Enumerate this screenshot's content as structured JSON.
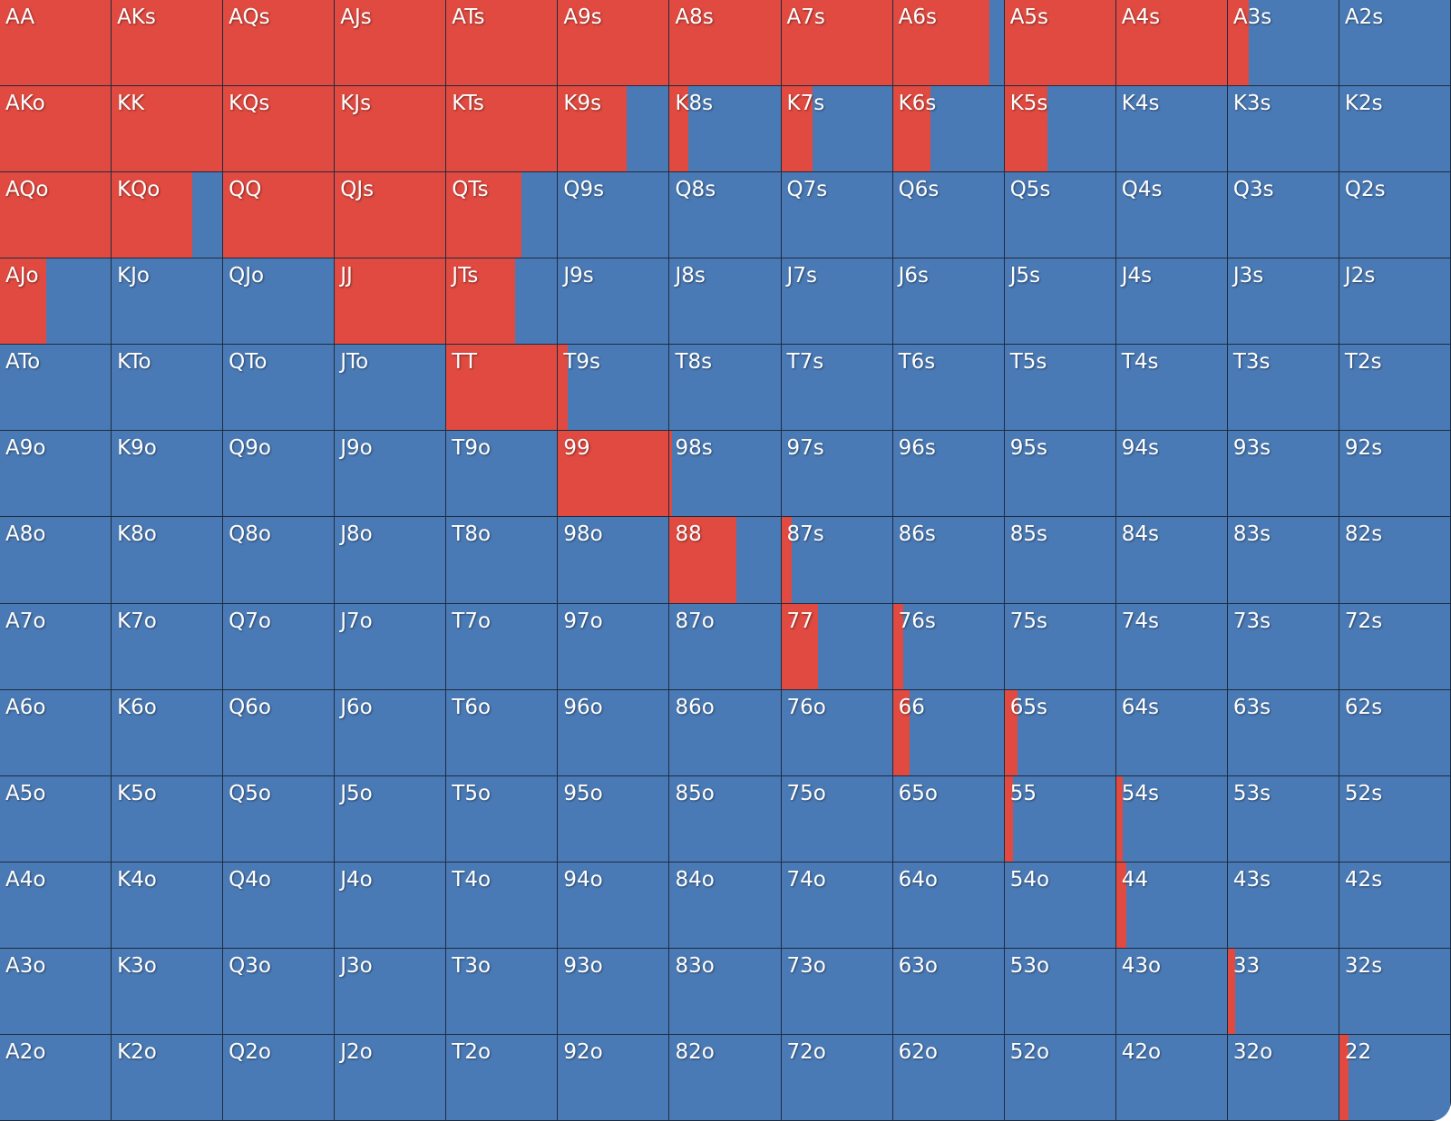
{
  "grid": {
    "colors": {
      "raise": "#e04a40",
      "fold": "#4a7ab5"
    },
    "labels": [
      [
        "AA",
        "AKs",
        "AQs",
        "AJs",
        "ATs",
        "A9s",
        "A8s",
        "A7s",
        "A6s",
        "A5s",
        "A4s",
        "A3s",
        "A2s"
      ],
      [
        "AKo",
        "KK",
        "KQs",
        "KJs",
        "KTs",
        "K9s",
        "K8s",
        "K7s",
        "K6s",
        "K5s",
        "K4s",
        "K3s",
        "K2s"
      ],
      [
        "AQo",
        "KQo",
        "QQ",
        "QJs",
        "QTs",
        "Q9s",
        "Q8s",
        "Q7s",
        "Q6s",
        "Q5s",
        "Q4s",
        "Q3s",
        "Q2s"
      ],
      [
        "AJo",
        "KJo",
        "QJo",
        "JJ",
        "JTs",
        "J9s",
        "J8s",
        "J7s",
        "J6s",
        "J5s",
        "J4s",
        "J3s",
        "J2s"
      ],
      [
        "ATo",
        "KTo",
        "QTo",
        "JTo",
        "TT",
        "T9s",
        "T8s",
        "T7s",
        "T6s",
        "T5s",
        "T4s",
        "T3s",
        "T2s"
      ],
      [
        "A9o",
        "K9o",
        "Q9o",
        "J9o",
        "T9o",
        "99",
        "98s",
        "97s",
        "96s",
        "95s",
        "94s",
        "93s",
        "92s"
      ],
      [
        "A8o",
        "K8o",
        "Q8o",
        "J8o",
        "T8o",
        "98o",
        "88",
        "87s",
        "86s",
        "85s",
        "84s",
        "83s",
        "82s"
      ],
      [
        "A7o",
        "K7o",
        "Q7o",
        "J7o",
        "T7o",
        "97o",
        "87o",
        "77",
        "76s",
        "75s",
        "74s",
        "73s",
        "72s"
      ],
      [
        "A6o",
        "K6o",
        "Q6o",
        "J6o",
        "T6o",
        "96o",
        "86o",
        "76o",
        "66",
        "65s",
        "64s",
        "63s",
        "62s"
      ],
      [
        "A5o",
        "K5o",
        "Q5o",
        "J5o",
        "T5o",
        "95o",
        "85o",
        "75o",
        "65o",
        "55",
        "54s",
        "53s",
        "52s"
      ],
      [
        "A4o",
        "K4o",
        "Q4o",
        "J4o",
        "T4o",
        "94o",
        "84o",
        "74o",
        "64o",
        "54o",
        "44",
        "43s",
        "42s"
      ],
      [
        "A3o",
        "K3o",
        "Q3o",
        "J3o",
        "T3o",
        "93o",
        "83o",
        "73o",
        "63o",
        "53o",
        "43o",
        "33",
        "32s"
      ],
      [
        "A2o",
        "K2o",
        "Q2o",
        "J2o",
        "T2o",
        "92o",
        "82o",
        "72o",
        "62o",
        "52o",
        "42o",
        "32o",
        "22"
      ]
    ],
    "raise": [
      [
        100,
        100,
        100,
        100,
        100,
        100,
        100,
        100,
        87,
        100,
        100,
        19,
        0
      ],
      [
        100,
        100,
        100,
        100,
        100,
        62,
        17,
        28,
        34,
        39,
        0,
        0,
        0
      ],
      [
        100,
        73,
        100,
        100,
        68,
        0,
        0,
        0,
        0,
        0,
        0,
        0,
        0
      ],
      [
        42,
        0,
        0,
        100,
        62,
        0,
        0,
        0,
        0,
        0,
        0,
        0,
        0
      ],
      [
        0,
        0,
        0,
        0,
        100,
        9,
        0,
        0,
        0,
        0,
        0,
        0,
        0
      ],
      [
        0,
        0,
        0,
        0,
        0,
        100,
        2,
        0,
        0,
        0,
        0,
        0,
        0
      ],
      [
        0,
        0,
        0,
        0,
        0,
        0,
        60,
        9,
        0,
        0,
        0,
        0,
        0
      ],
      [
        0,
        0,
        0,
        0,
        0,
        0,
        0,
        33,
        9,
        0,
        0,
        0,
        0
      ],
      [
        0,
        0,
        0,
        0,
        0,
        0,
        0,
        0,
        15,
        12,
        0,
        0,
        0
      ],
      [
        0,
        0,
        0,
        0,
        0,
        0,
        0,
        0,
        0,
        8,
        6,
        0,
        0
      ],
      [
        0,
        0,
        0,
        0,
        0,
        0,
        0,
        0,
        0,
        0,
        9,
        0,
        0
      ],
      [
        0,
        0,
        0,
        0,
        0,
        0,
        0,
        0,
        0,
        0,
        0,
        7,
        0
      ],
      [
        0,
        0,
        0,
        0,
        0,
        0,
        0,
        0,
        0,
        0,
        0,
        0,
        8
      ]
    ]
  }
}
